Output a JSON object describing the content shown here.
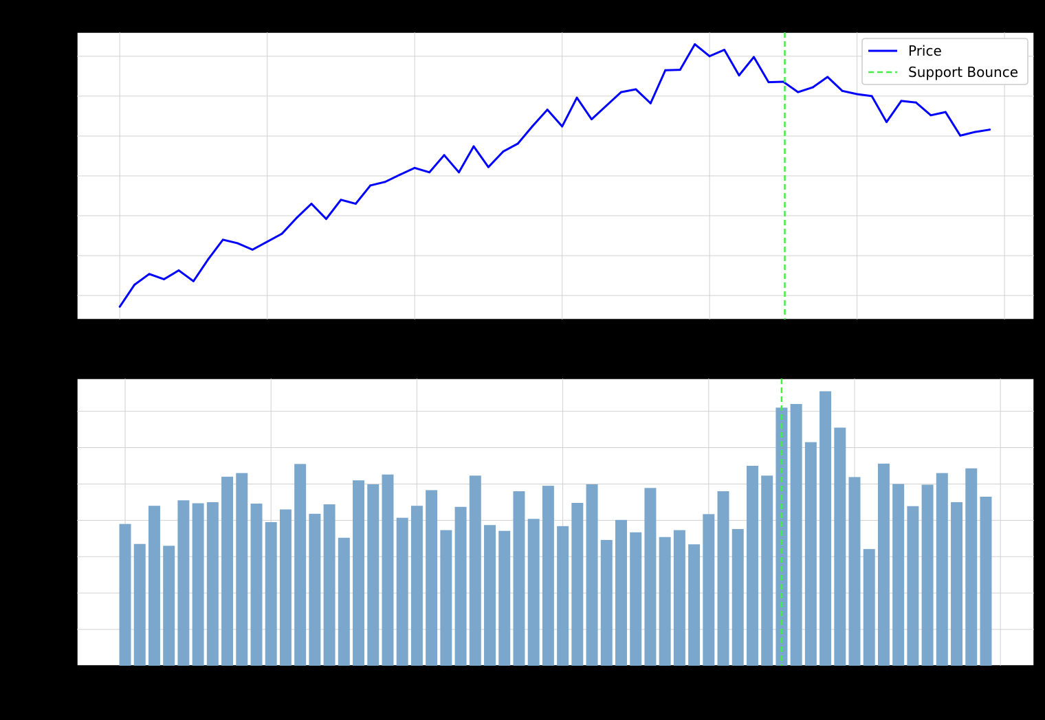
{
  "chart_data": [
    {
      "type": "line",
      "title": "",
      "xlabel": "",
      "ylabel": "",
      "grid": true,
      "legend_placement": "top-right",
      "colors": {
        "price": "#0000ff",
        "marker": "#44ee44",
        "grid": "#d0d0d0"
      },
      "x": [
        0,
        1,
        2,
        3,
        4,
        5,
        6,
        7,
        8,
        9,
        10,
        11,
        12,
        13,
        14,
        15,
        16,
        17,
        18,
        19,
        20,
        21,
        22,
        23,
        24,
        25,
        26,
        27,
        28,
        29,
        30,
        31,
        32,
        33,
        34,
        35,
        36,
        37,
        38,
        39,
        40,
        41,
        42,
        43,
        44,
        45,
        46,
        47,
        48,
        49,
        50,
        51,
        52,
        53,
        54,
        55,
        56,
        57,
        58,
        59
      ],
      "xlim": [
        -2.9,
        62
      ],
      "ylim": [
        0,
        72
      ],
      "grid_x": [
        0,
        10,
        20,
        30,
        40,
        50,
        60
      ],
      "grid_y": [
        6,
        16,
        26,
        36,
        46,
        56,
        66
      ],
      "series": [
        {
          "name": "Price",
          "values": [
            3.2,
            8.7,
            11.4,
            10.1,
            12.3,
            9.6,
            15.1,
            20.0,
            19.1,
            17.5,
            19.5,
            21.5,
            25.5,
            29.0,
            25.2,
            30.0,
            29.0,
            33.6,
            34.5,
            36.3,
            38.0,
            36.9,
            41.2,
            36.9,
            43.4,
            38.2,
            42.1,
            44.1,
            48.5,
            52.6,
            48.4,
            55.6,
            50.2,
            53.6,
            57.0,
            57.7,
            54.2,
            62.5,
            62.6,
            69.0,
            66.0,
            67.6,
            61.2,
            65.8,
            59.5,
            59.6,
            57.0,
            58.2,
            60.8,
            57.3,
            56.5,
            56.0,
            49.5,
            54.8,
            54.4,
            51.2,
            52.0,
            46.1,
            47.0,
            47.6
          ]
        }
      ],
      "annotations": [
        {
          "name": "Support Bounce",
          "x": 45.1,
          "style": "dashed"
        }
      ]
    },
    {
      "type": "bar",
      "title": "",
      "xlabel": "",
      "ylabel": "",
      "grid": true,
      "colors": {
        "bar": "#7ba7cc",
        "marker": "#44ee44",
        "grid": "#d0d0d0"
      },
      "x": [
        0,
        1,
        2,
        3,
        4,
        5,
        6,
        7,
        8,
        9,
        10,
        11,
        12,
        13,
        14,
        15,
        16,
        17,
        18,
        19,
        20,
        21,
        22,
        23,
        24,
        25,
        26,
        27,
        28,
        29,
        30,
        31,
        32,
        33,
        34,
        35,
        36,
        37,
        38,
        39,
        40,
        41,
        42,
        43,
        44,
        45,
        46,
        47,
        48,
        49,
        50,
        51,
        52,
        53,
        54,
        55,
        56,
        57,
        58,
        59
      ],
      "xlim": [
        -3.3,
        62.3
      ],
      "ylim": [
        0,
        79
      ],
      "grid_x": [
        0,
        10,
        20,
        30,
        40,
        50,
        60
      ],
      "grid_y": [
        10,
        20,
        30,
        40,
        50,
        60,
        70
      ],
      "values": [
        39,
        33.5,
        44,
        33,
        45.5,
        44.7,
        45,
        52,
        53,
        44.6,
        39.5,
        43,
        55.5,
        41.8,
        44.4,
        35.2,
        51,
        49.9,
        52.6,
        40.7,
        44,
        48.3,
        37.3,
        43.7,
        52.3,
        38.7,
        37.1,
        48,
        40.4,
        49.5,
        38.4,
        44.8,
        49.9,
        34.6,
        40.1,
        36.7,
        48.9,
        35.4,
        37.3,
        33.4,
        41.7,
        48,
        37.6,
        55,
        52.3,
        71,
        72,
        61.5,
        75.5,
        65.5,
        51.9,
        32.1,
        55.6,
        50,
        43.9,
        49.8,
        53,
        45,
        54.3,
        46.5
      ],
      "annotations": [
        {
          "name": "Support Bounce",
          "x": 45.0,
          "style": "dashed"
        }
      ]
    }
  ]
}
